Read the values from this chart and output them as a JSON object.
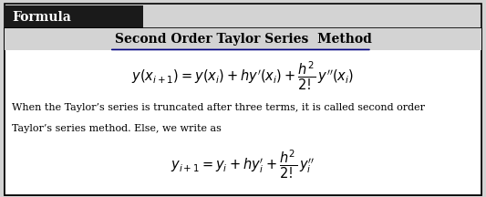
{
  "title_label": "Formula",
  "title_bg": "#1a1a1a",
  "title_fg": "#ffffff",
  "subtitle": "Second Order Taylor Series  Method",
  "formula1": "$y(x_{i+1}) = y(x_i) + hy'(x_i) + \\dfrac{h^2}{2!}\\, y''(x_i)$",
  "body_text_line1": "When the Taylor’s series is truncated after three terms, it is called second order",
  "body_text_line2": "Taylor’s series method. Else, we write as",
  "formula2": "$y_{i+1} = y_i + hy_i' + \\dfrac{h^2}{2!}\\, y_i''$",
  "outer_bg": "#d3d3d3",
  "inner_bg": "#ffffff",
  "border_color": "#000000",
  "fig_width": 5.33,
  "fig_height": 2.16
}
